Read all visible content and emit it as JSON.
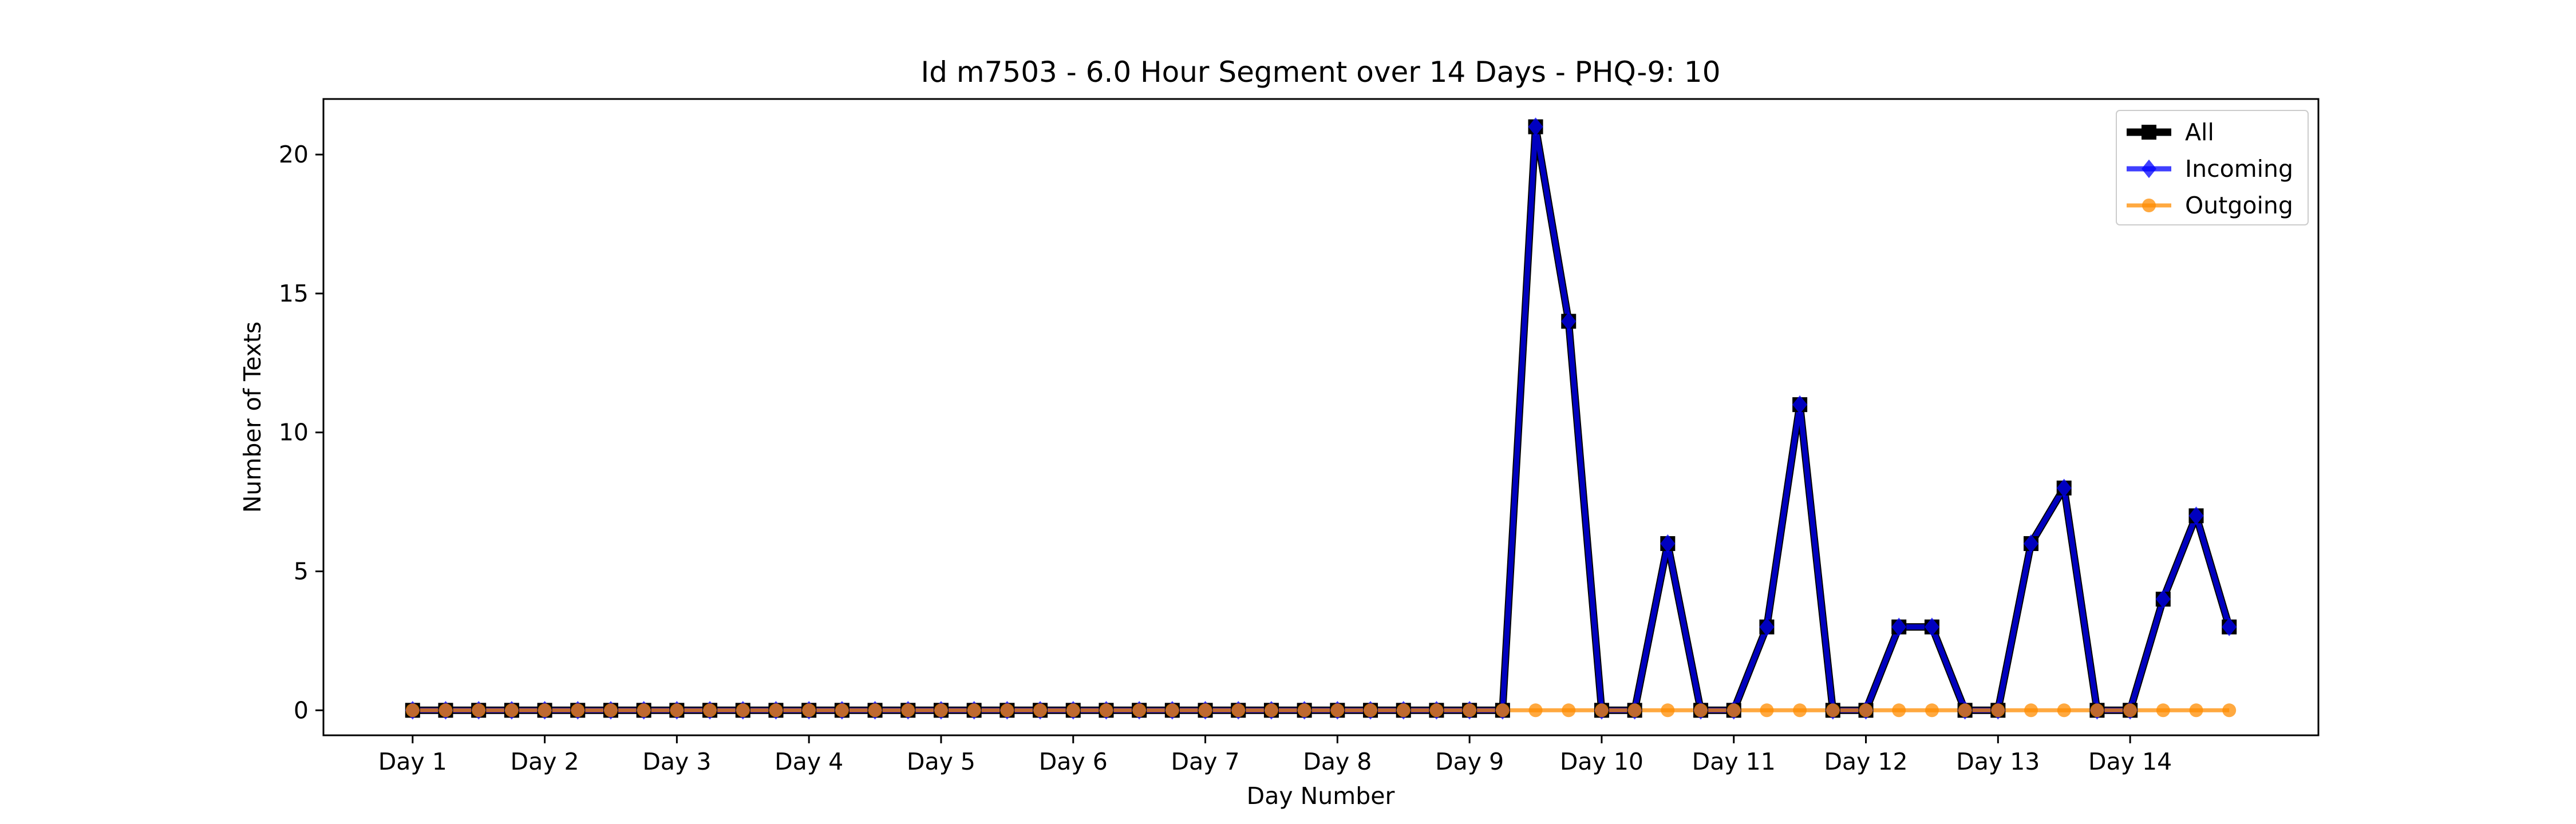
{
  "chart_data": {
    "type": "line",
    "title": "Id m7503 - 6.0 Hour Segment over 14 Days - PHQ-9: 10",
    "xlabel": "Day Number",
    "ylabel": "Number of Texts",
    "x_tick_labels": [
      "Day 1",
      "Day 2",
      "Day 3",
      "Day 4",
      "Day 5",
      "Day 6",
      "Day 7",
      "Day 8",
      "Day 9",
      "Day 10",
      "Day 11",
      "Day 12",
      "Day 13",
      "Day 14"
    ],
    "y_ticks": [
      0,
      5,
      10,
      15,
      20
    ],
    "ylim": [
      -0.9,
      22.0
    ],
    "xlim": [
      -2.7,
      57.7
    ],
    "grid": false,
    "legend_position": "top-right",
    "series": [
      {
        "name": "All",
        "color": "#000000",
        "marker": "square",
        "values": [
          0,
          0,
          0,
          0,
          0,
          0,
          0,
          0,
          0,
          0,
          0,
          0,
          0,
          0,
          0,
          0,
          0,
          0,
          0,
          0,
          0,
          0,
          0,
          0,
          0,
          0,
          0,
          0,
          0,
          0,
          0,
          0,
          0,
          0,
          21,
          14,
          0,
          0,
          6,
          0,
          0,
          3,
          11,
          0,
          0,
          3,
          3,
          0,
          0,
          6,
          8,
          0,
          0,
          4,
          7,
          3
        ]
      },
      {
        "name": "Incoming",
        "color": "#0000ff",
        "marker": "diamond",
        "values": [
          0,
          0,
          0,
          0,
          0,
          0,
          0,
          0,
          0,
          0,
          0,
          0,
          0,
          0,
          0,
          0,
          0,
          0,
          0,
          0,
          0,
          0,
          0,
          0,
          0,
          0,
          0,
          0,
          0,
          0,
          0,
          0,
          0,
          0,
          21,
          14,
          0,
          0,
          6,
          0,
          0,
          3,
          11,
          0,
          0,
          3,
          3,
          0,
          0,
          6,
          8,
          0,
          0,
          4,
          7,
          3
        ]
      },
      {
        "name": "Outgoing",
        "color": "#ff8c00",
        "marker": "circle",
        "values": [
          0,
          0,
          0,
          0,
          0,
          0,
          0,
          0,
          0,
          0,
          0,
          0,
          0,
          0,
          0,
          0,
          0,
          0,
          0,
          0,
          0,
          0,
          0,
          0,
          0,
          0,
          0,
          0,
          0,
          0,
          0,
          0,
          0,
          0,
          0,
          0,
          0,
          0,
          0,
          0,
          0,
          0,
          0,
          0,
          0,
          0,
          0,
          0,
          0,
          0,
          0,
          0,
          0,
          0,
          0,
          0
        ]
      }
    ]
  }
}
